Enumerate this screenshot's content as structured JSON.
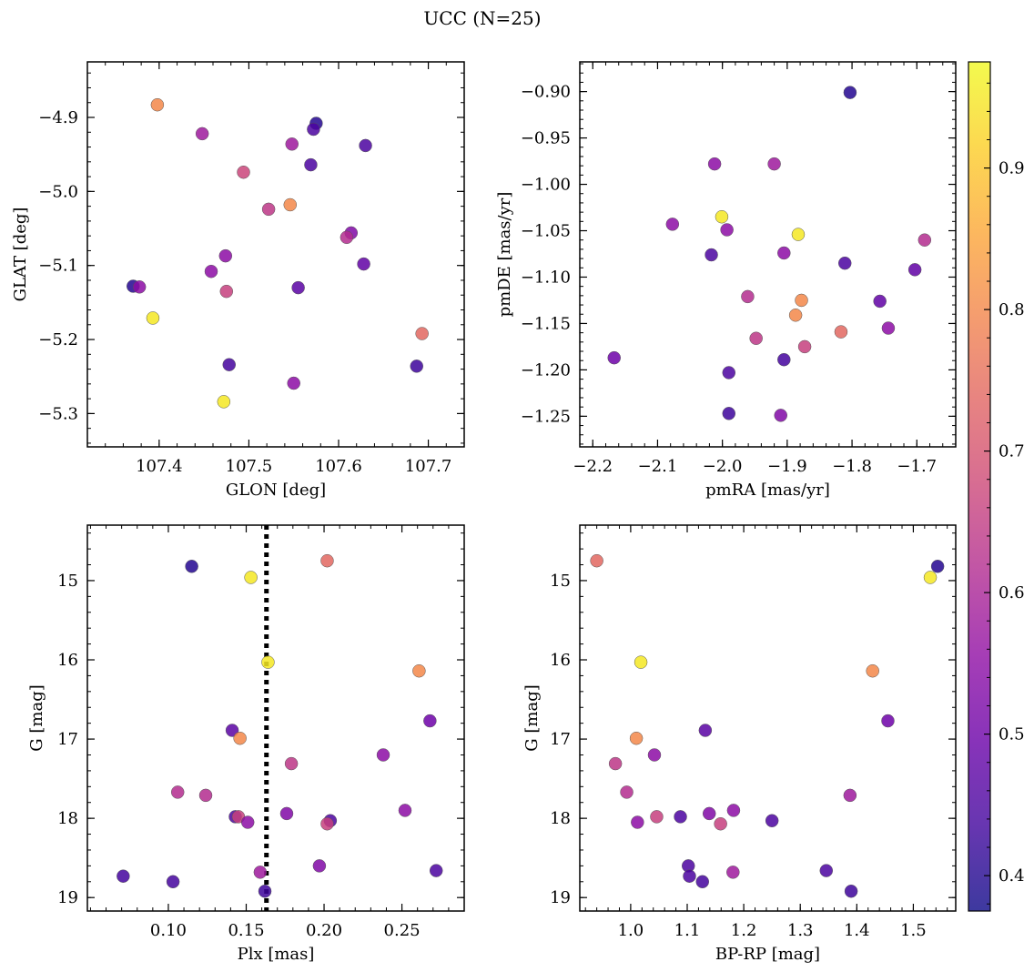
{
  "figure": {
    "title": "UCC (N=25)"
  },
  "colorbar": {
    "ticks": [
      0.4,
      0.5,
      0.6,
      0.7,
      0.8,
      0.9
    ],
    "vmin": 0.375,
    "vmax": 0.975,
    "colormap": "plasma"
  },
  "chart_data": [
    {
      "type": "scatter",
      "xlabel": "GLON [deg]",
      "ylabel": "GLAT [deg]",
      "xlim": [
        107.32,
        107.74
      ],
      "ylim": [
        -5.345,
        -4.825
      ],
      "xticks": [
        107.4,
        107.5,
        107.6,
        107.7
      ],
      "yticks": [
        -4.9,
        -5.0,
        -5.1,
        -5.2,
        -5.3
      ],
      "points": [
        {
          "x": 107.575,
          "y": -4.908,
          "c": 0.4
        },
        {
          "x": 107.572,
          "y": -4.916,
          "c": 0.45
        },
        {
          "x": 107.63,
          "y": -4.938,
          "c": 0.45
        },
        {
          "x": 107.569,
          "y": -4.964,
          "c": 0.45
        },
        {
          "x": 107.548,
          "y": -4.936,
          "c": 0.58
        },
        {
          "x": 107.448,
          "y": -4.922,
          "c": 0.58
        },
        {
          "x": 107.398,
          "y": -4.883,
          "c": 0.8
        },
        {
          "x": 107.494,
          "y": -4.974,
          "c": 0.67
        },
        {
          "x": 107.522,
          "y": -5.024,
          "c": 0.64
        },
        {
          "x": 107.546,
          "y": -5.018,
          "c": 0.8
        },
        {
          "x": 107.614,
          "y": -5.056,
          "c": 0.53
        },
        {
          "x": 107.609,
          "y": -5.062,
          "c": 0.62
        },
        {
          "x": 107.628,
          "y": -5.098,
          "c": 0.48
        },
        {
          "x": 107.474,
          "y": -5.087,
          "c": 0.55
        },
        {
          "x": 107.458,
          "y": -5.108,
          "c": 0.55
        },
        {
          "x": 107.475,
          "y": -5.135,
          "c": 0.66
        },
        {
          "x": 107.555,
          "y": -5.13,
          "c": 0.47
        },
        {
          "x": 107.371,
          "y": -5.128,
          "c": 0.4
        },
        {
          "x": 107.378,
          "y": -5.129,
          "c": 0.55
        },
        {
          "x": 107.393,
          "y": -5.171,
          "c": 0.95
        },
        {
          "x": 107.478,
          "y": -5.234,
          "c": 0.44
        },
        {
          "x": 107.472,
          "y": -5.284,
          "c": 0.95
        },
        {
          "x": 107.55,
          "y": -5.259,
          "c": 0.55
        },
        {
          "x": 107.687,
          "y": -5.236,
          "c": 0.43
        },
        {
          "x": 107.693,
          "y": -5.192,
          "c": 0.74
        }
      ]
    },
    {
      "type": "scatter",
      "xlabel": "pmRA [mas/yr]",
      "ylabel": "pmDE [mas/yr]",
      "xlim": [
        -2.22,
        -1.64
      ],
      "ylim": [
        -1.283,
        -0.868
      ],
      "xticks": [
        -2.2,
        -2.1,
        -2.0,
        -1.9,
        -1.8,
        -1.7
      ],
      "yticks": [
        -0.9,
        -0.95,
        -1.0,
        -1.05,
        -1.1,
        -1.15,
        -1.2,
        -1.25
      ],
      "points": [
        {
          "x": -1.803,
          "y": -0.901,
          "c": 0.4
        },
        {
          "x": -2.012,
          "y": -0.978,
          "c": 0.55
        },
        {
          "x": -1.92,
          "y": -0.978,
          "c": 0.58
        },
        {
          "x": -2.001,
          "y": -1.035,
          "c": 0.95
        },
        {
          "x": -2.077,
          "y": -1.043,
          "c": 0.55
        },
        {
          "x": -1.993,
          "y": -1.049,
          "c": 0.55
        },
        {
          "x": -1.883,
          "y": -1.054,
          "c": 0.95
        },
        {
          "x": -2.017,
          "y": -1.076,
          "c": 0.45
        },
        {
          "x": -1.905,
          "y": -1.074,
          "c": 0.55
        },
        {
          "x": -1.811,
          "y": -1.085,
          "c": 0.45
        },
        {
          "x": -1.703,
          "y": -1.092,
          "c": 0.48
        },
        {
          "x": -1.688,
          "y": -1.06,
          "c": 0.62
        },
        {
          "x": -1.961,
          "y": -1.121,
          "c": 0.62
        },
        {
          "x": -1.878,
          "y": -1.125,
          "c": 0.8
        },
        {
          "x": -1.757,
          "y": -1.126,
          "c": 0.48
        },
        {
          "x": -1.887,
          "y": -1.141,
          "c": 0.8
        },
        {
          "x": -1.817,
          "y": -1.159,
          "c": 0.74
        },
        {
          "x": -1.744,
          "y": -1.155,
          "c": 0.55
        },
        {
          "x": -1.948,
          "y": -1.166,
          "c": 0.64
        },
        {
          "x": -1.873,
          "y": -1.175,
          "c": 0.66
        },
        {
          "x": -2.167,
          "y": -1.187,
          "c": 0.5
        },
        {
          "x": -1.905,
          "y": -1.189,
          "c": 0.44
        },
        {
          "x": -1.99,
          "y": -1.203,
          "c": 0.45
        },
        {
          "x": -1.99,
          "y": -1.247,
          "c": 0.43
        },
        {
          "x": -1.91,
          "y": -1.249,
          "c": 0.53
        }
      ]
    },
    {
      "type": "scatter",
      "xlabel": "Plx [mas]",
      "ylabel": "G [mag]",
      "xlim": [
        0.048,
        0.29
      ],
      "ylim": [
        19.17,
        14.3
      ],
      "xticks": [
        0.1,
        0.15,
        0.2,
        0.25
      ],
      "yticks": [
        15,
        16,
        17,
        18,
        19
      ],
      "vline": 0.163,
      "points": [
        {
          "x": 0.115,
          "y": 14.82,
          "c": 0.4
        },
        {
          "x": 0.153,
          "y": 14.96,
          "c": 0.95
        },
        {
          "x": 0.202,
          "y": 14.75,
          "c": 0.74
        },
        {
          "x": 0.164,
          "y": 16.03,
          "c": 0.95
        },
        {
          "x": 0.261,
          "y": 16.14,
          "c": 0.8
        },
        {
          "x": 0.268,
          "y": 16.77,
          "c": 0.5
        },
        {
          "x": 0.141,
          "y": 16.89,
          "c": 0.47
        },
        {
          "x": 0.146,
          "y": 16.99,
          "c": 0.8
        },
        {
          "x": 0.238,
          "y": 17.2,
          "c": 0.55
        },
        {
          "x": 0.179,
          "y": 17.31,
          "c": 0.64
        },
        {
          "x": 0.106,
          "y": 17.67,
          "c": 0.62
        },
        {
          "x": 0.124,
          "y": 17.71,
          "c": 0.62
        },
        {
          "x": 0.143,
          "y": 17.98,
          "c": 0.45
        },
        {
          "x": 0.145,
          "y": 17.98,
          "c": 0.66
        },
        {
          "x": 0.151,
          "y": 18.05,
          "c": 0.55
        },
        {
          "x": 0.176,
          "y": 17.94,
          "c": 0.53
        },
        {
          "x": 0.204,
          "y": 18.03,
          "c": 0.45
        },
        {
          "x": 0.202,
          "y": 18.07,
          "c": 0.66
        },
        {
          "x": 0.252,
          "y": 17.9,
          "c": 0.55
        },
        {
          "x": 0.197,
          "y": 18.6,
          "c": 0.53
        },
        {
          "x": 0.159,
          "y": 18.68,
          "c": 0.58
        },
        {
          "x": 0.162,
          "y": 18.92,
          "c": 0.43
        },
        {
          "x": 0.071,
          "y": 18.73,
          "c": 0.44
        },
        {
          "x": 0.103,
          "y": 18.8,
          "c": 0.44
        },
        {
          "x": 0.272,
          "y": 18.66,
          "c": 0.45
        }
      ]
    },
    {
      "type": "scatter",
      "xlabel": "BP-RP [mag]",
      "ylabel": "G [mag]",
      "xlim": [
        0.91,
        1.575
      ],
      "ylim": [
        19.17,
        14.3
      ],
      "xticks": [
        1.0,
        1.1,
        1.2,
        1.3,
        1.4,
        1.5
      ],
      "yticks": [
        15,
        16,
        17,
        18,
        19
      ],
      "points": [
        {
          "x": 0.94,
          "y": 14.75,
          "c": 0.74
        },
        {
          "x": 1.543,
          "y": 14.82,
          "c": 0.4
        },
        {
          "x": 1.53,
          "y": 14.96,
          "c": 0.95
        },
        {
          "x": 1.018,
          "y": 16.03,
          "c": 0.95
        },
        {
          "x": 1.428,
          "y": 16.14,
          "c": 0.8
        },
        {
          "x": 1.455,
          "y": 16.77,
          "c": 0.5
        },
        {
          "x": 1.132,
          "y": 16.89,
          "c": 0.47
        },
        {
          "x": 1.01,
          "y": 16.99,
          "c": 0.8
        },
        {
          "x": 1.042,
          "y": 17.2,
          "c": 0.55
        },
        {
          "x": 0.973,
          "y": 17.31,
          "c": 0.64
        },
        {
          "x": 0.993,
          "y": 17.67,
          "c": 0.62
        },
        {
          "x": 1.388,
          "y": 17.71,
          "c": 0.58
        },
        {
          "x": 1.088,
          "y": 17.98,
          "c": 0.45
        },
        {
          "x": 1.046,
          "y": 17.98,
          "c": 0.66
        },
        {
          "x": 1.012,
          "y": 18.05,
          "c": 0.55
        },
        {
          "x": 1.139,
          "y": 17.94,
          "c": 0.53
        },
        {
          "x": 1.182,
          "y": 17.9,
          "c": 0.55
        },
        {
          "x": 1.159,
          "y": 18.07,
          "c": 0.66
        },
        {
          "x": 1.25,
          "y": 18.03,
          "c": 0.45
        },
        {
          "x": 1.102,
          "y": 18.6,
          "c": 0.45
        },
        {
          "x": 1.181,
          "y": 18.68,
          "c": 0.58
        },
        {
          "x": 1.104,
          "y": 18.73,
          "c": 0.45
        },
        {
          "x": 1.127,
          "y": 18.8,
          "c": 0.44
        },
        {
          "x": 1.346,
          "y": 18.66,
          "c": 0.45
        },
        {
          "x": 1.39,
          "y": 18.92,
          "c": 0.43
        }
      ]
    }
  ]
}
